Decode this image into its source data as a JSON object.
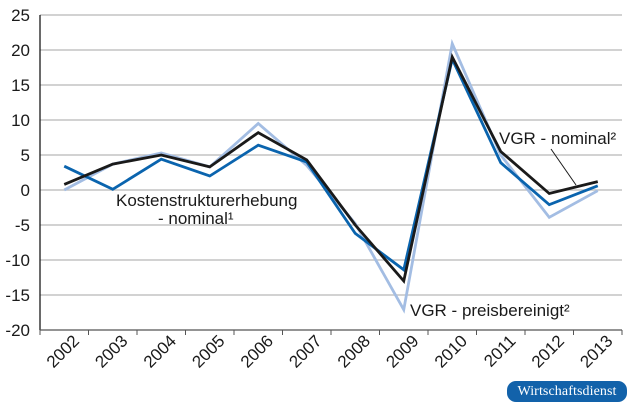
{
  "chart_data": {
    "type": "line",
    "title": "",
    "xlabel": "",
    "ylabel": "",
    "ylim": [
      -20,
      25
    ],
    "yticks": [
      25,
      20,
      15,
      10,
      5,
      0,
      -5,
      -10,
      -15,
      -20
    ],
    "grid": true,
    "categories": [
      "2002",
      "2003",
      "2004",
      "2005",
      "2006",
      "2007",
      "2008",
      "2009",
      "2010",
      "2011",
      "2012",
      "2013"
    ],
    "series": [
      {
        "name": "Kostenstrukturerhebung - nominal¹",
        "color": "#0a64ae",
        "values": [
          3.4,
          0.1,
          4.4,
          2.0,
          6.4,
          4.0,
          -6.2,
          -11.4,
          18.7,
          3.9,
          -2.1,
          0.6
        ]
      },
      {
        "name": "VGR - nominal²",
        "color": "#1a1a1a",
        "values": [
          0.8,
          3.7,
          5.0,
          3.3,
          8.2,
          4.3,
          -5.0,
          -13.0,
          19.0,
          5.5,
          -0.5,
          1.2
        ]
      },
      {
        "name": "VGR - preisbereinigt²",
        "color": "#a3bde3",
        "values": [
          0.0,
          3.7,
          5.3,
          3.3,
          9.5,
          3.5,
          -4.8,
          -17.1,
          20.9,
          5.0,
          -3.9,
          -0.1
        ]
      }
    ],
    "annotations": [
      {
        "text_line1": "Kostenstrukturerhebung",
        "text_line2": "- nominal¹",
        "series": 0
      },
      {
        "text": "VGR - nominal²",
        "series": 1
      },
      {
        "text": "VGR - preisbereinigt²",
        "series": 2
      }
    ]
  },
  "labels": {
    "kse_line1": "Kostenstrukturerhebung",
    "kse_line2": "- nominal¹",
    "vgr_nominal": "VGR - nominal²",
    "vgr_real": "VGR - preisbereinigt²"
  },
  "branding": {
    "logo_text": "Wirtschaftsdienst",
    "logo_color": "#1262aa"
  }
}
